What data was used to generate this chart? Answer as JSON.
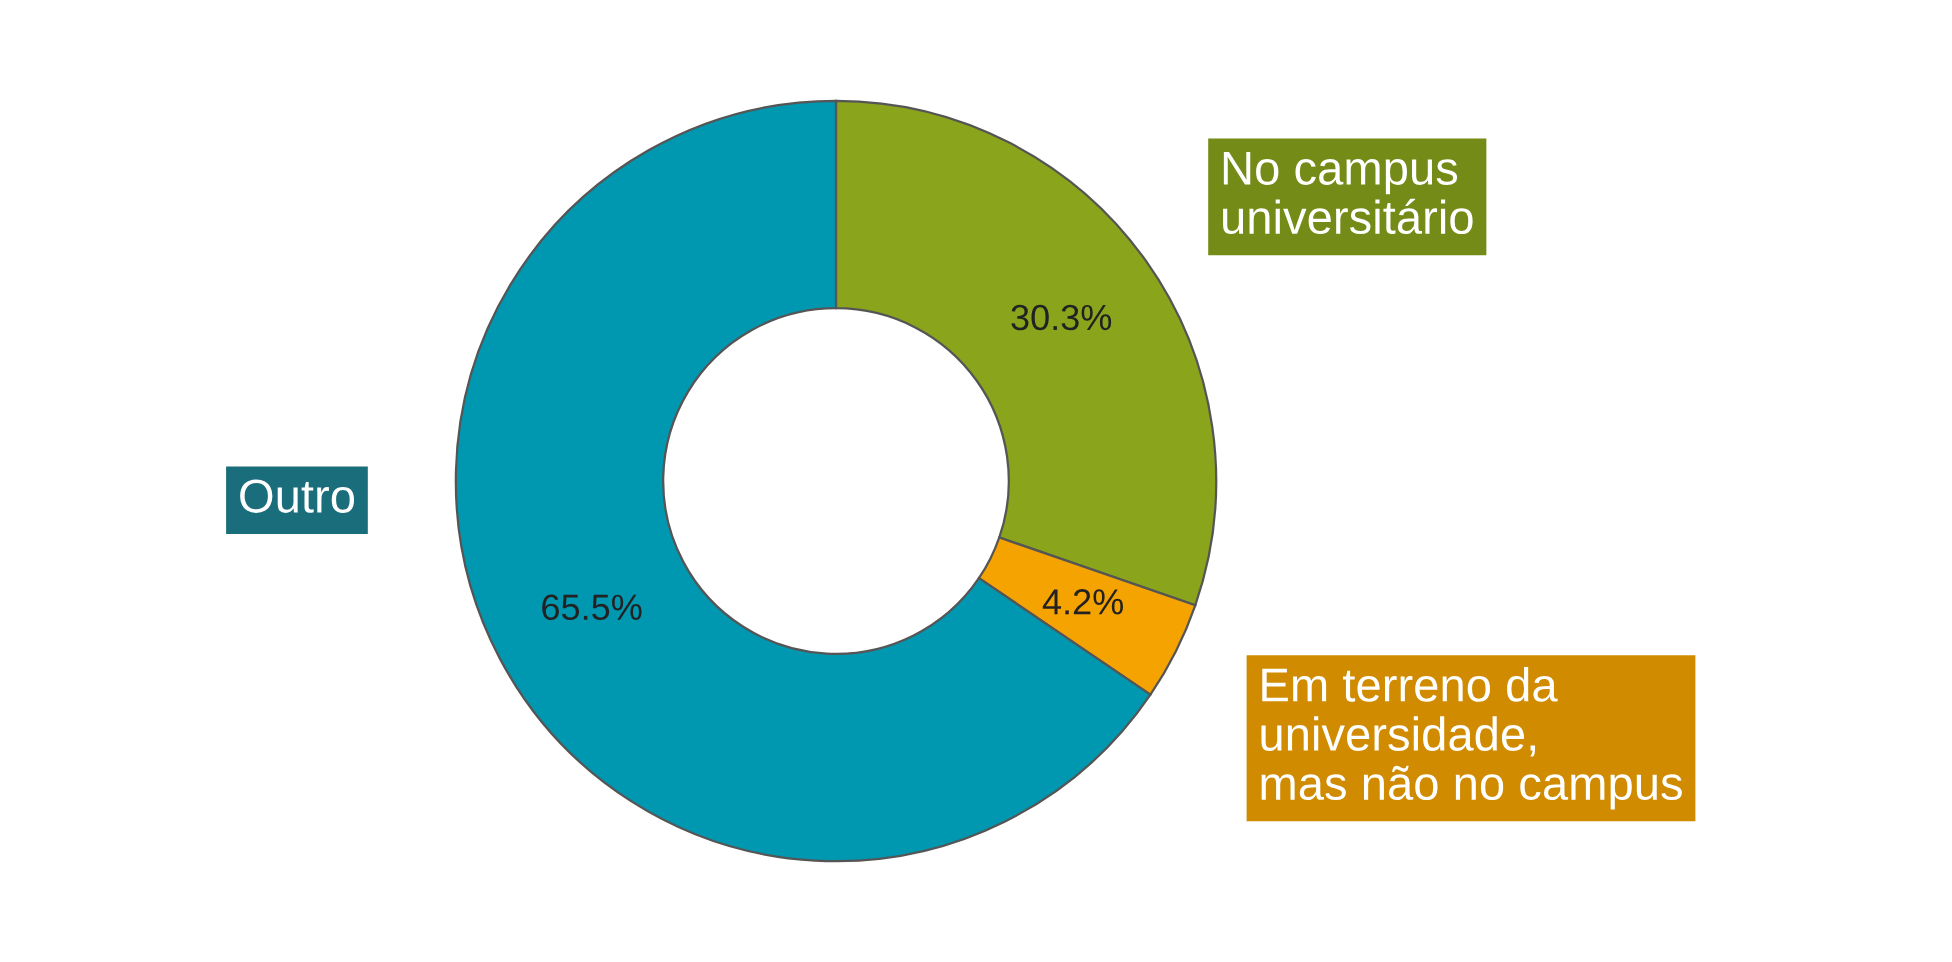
{
  "chart_data": {
    "type": "donut",
    "categories": [
      "No campus\nuniversitário",
      "Em terreno da\nuniversidade,\nmas não no campus",
      "Outro"
    ],
    "values": [
      30.3,
      4.2,
      65.5
    ],
    "colors": [
      "#8aa41c",
      "#f5a300",
      "#0097b0"
    ],
    "value_labels": [
      "30.3%",
      "4.2%",
      "65.5%"
    ],
    "legend": false
  }
}
